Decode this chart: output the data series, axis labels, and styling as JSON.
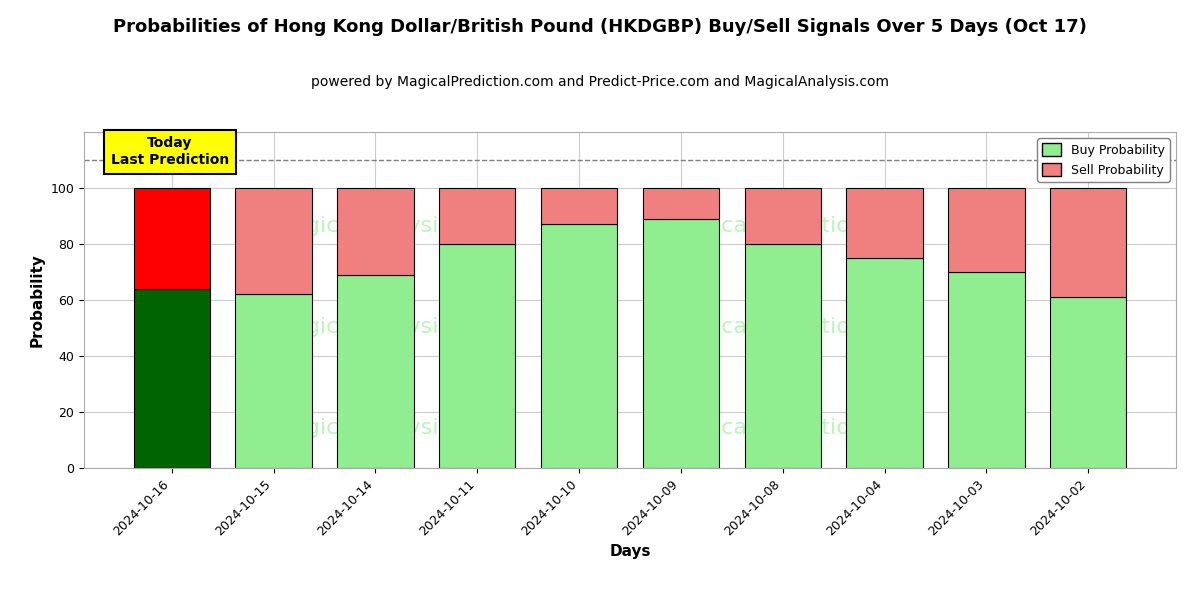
{
  "title": "Probabilities of Hong Kong Dollar/British Pound (HKDGBP) Buy/Sell Signals Over 5 Days (Oct 17)",
  "subtitle": "powered by MagicalPrediction.com and Predict-Price.com and MagicalAnalysis.com",
  "xlabel": "Days",
  "ylabel": "Probability",
  "categories": [
    "2024-10-16",
    "2024-10-15",
    "2024-10-14",
    "2024-10-11",
    "2024-10-10",
    "2024-10-09",
    "2024-10-08",
    "2024-10-04",
    "2024-10-03",
    "2024-10-02"
  ],
  "buy_values": [
    64,
    62,
    69,
    80,
    87,
    89,
    80,
    75,
    70,
    61
  ],
  "sell_values": [
    36,
    38,
    31,
    20,
    13,
    11,
    20,
    25,
    30,
    39
  ],
  "first_bar_buy_color": "#006400",
  "first_bar_sell_color": "#FF0000",
  "other_buy_color": "#90EE90",
  "other_sell_color": "#F08080",
  "bar_edge_color": "#000000",
  "ylim": [
    0,
    120
  ],
  "yticks": [
    0,
    20,
    40,
    60,
    80,
    100
  ],
  "dashed_line_y": 110,
  "legend_buy_label": "Buy Probability",
  "legend_sell_label": "Sell Probability",
  "annotation_text": "Today\nLast Prediction",
  "annotation_bg": "#FFFF00",
  "background_color": "#ffffff",
  "grid_color": "#cccccc",
  "title_fontsize": 13,
  "subtitle_fontsize": 10,
  "label_fontsize": 11,
  "tick_fontsize": 9,
  "bar_width": 0.75
}
